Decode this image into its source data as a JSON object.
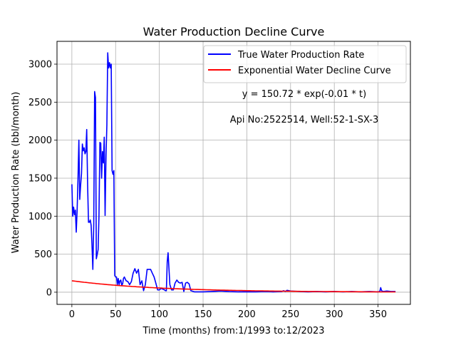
{
  "chart_data": {
    "type": "line",
    "title": "Water Production Decline Curve",
    "xlabel": "Time (months) from:1/1993 to:12/2023",
    "ylabel": "Water Production Rate (bbl/month)",
    "xlim": [
      -17,
      387
    ],
    "ylim": [
      -160,
      3300
    ],
    "xticks": [
      0,
      50,
      100,
      150,
      200,
      250,
      300,
      350
    ],
    "yticks": [
      0,
      500,
      1000,
      1500,
      2000,
      2500,
      3000
    ],
    "grid": true,
    "legend_position": "top-right",
    "annotations": [
      "y = 150.72 * exp(-0.01 * t)",
      "Api No:2522514, Well:52-1-SX-3"
    ],
    "series": [
      {
        "name": "True Water Production Rate",
        "color": "#0000ff",
        "x": [
          0,
          1,
          2,
          3,
          4,
          5,
          6,
          7,
          8,
          9,
          10,
          11,
          12,
          13,
          14,
          15,
          16,
          17,
          18,
          19,
          20,
          21,
          22,
          23,
          24,
          25,
          26,
          27,
          28,
          29,
          30,
          31,
          32,
          33,
          34,
          35,
          36,
          37,
          38,
          39,
          40,
          41,
          42,
          43,
          44,
          45,
          46,
          47,
          48,
          49,
          50,
          51,
          52,
          53,
          54,
          55,
          56,
          57,
          58,
          59,
          60,
          62,
          64,
          66,
          68,
          70,
          72,
          74,
          76,
          78,
          80,
          82,
          84,
          86,
          88,
          90,
          92,
          94,
          96,
          98,
          100,
          102,
          104,
          106,
          107,
          108,
          109,
          110,
          112,
          114,
          116,
          118,
          120,
          122,
          124,
          126,
          128,
          130,
          132,
          134,
          136,
          140,
          150,
          160,
          170,
          180,
          190,
          200,
          210,
          220,
          230,
          240,
          242,
          244,
          246,
          250,
          260,
          270,
          280,
          290,
          300,
          310,
          320,
          330,
          340,
          350,
          352,
          353,
          354,
          356,
          360,
          365,
          370
        ],
        "y": [
          1420,
          1000,
          1120,
          1020,
          1080,
          790,
          1060,
          1500,
          2000,
          1220,
          1400,
          1560,
          1950,
          1860,
          1900,
          1820,
          1850,
          2140,
          1400,
          920,
          920,
          950,
          880,
          620,
          300,
          900,
          2640,
          2560,
          440,
          500,
          560,
          1000,
          1970,
          1960,
          1500,
          1850,
          1700,
          2040,
          1010,
          1800,
          2200,
          3150,
          2950,
          3020,
          2950,
          3000,
          1600,
          1550,
          1600,
          220,
          200,
          200,
          100,
          180,
          100,
          150,
          160,
          90,
          110,
          180,
          200,
          150,
          140,
          100,
          140,
          250,
          310,
          250,
          300,
          100,
          150,
          20,
          100,
          300,
          300,
          300,
          250,
          200,
          120,
          30,
          30,
          50,
          40,
          30,
          20,
          20,
          400,
          520,
          100,
          30,
          30,
          120,
          160,
          130,
          120,
          130,
          10,
          120,
          130,
          110,
          20,
          5,
          5,
          10,
          15,
          8,
          5,
          5,
          5,
          8,
          5,
          10,
          20,
          10,
          25,
          15,
          10,
          5,
          10,
          5,
          10,
          5,
          10,
          5,
          10,
          5,
          10,
          60,
          20,
          10,
          15,
          10,
          10
        ]
      },
      {
        "name": "Exponential Water Decline Curve",
        "color": "#ff0000",
        "function": "150.72 * exp(-0.01 * t)",
        "x_range": [
          0,
          370
        ]
      }
    ]
  }
}
